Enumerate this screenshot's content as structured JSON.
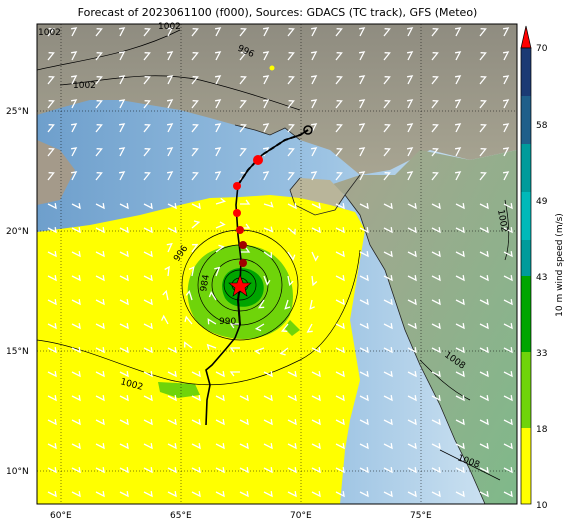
{
  "title": "Forecast of 2023061100 (f000), Sources: GDACS (TC track), GFS (Meteo)",
  "map": {
    "lon_ticks": [
      "60°E",
      "65°E",
      "70°E",
      "75°E"
    ],
    "lat_ticks": [
      "25°N",
      "20°N",
      "15°N",
      "10°N"
    ],
    "extent": {
      "lon": [
        59,
        79
      ],
      "lat": [
        8.8,
        28.5
      ]
    },
    "isobar_labels": [
      "1002",
      "1002",
      "1002",
      "996",
      "996",
      "984",
      "990",
      "1002",
      "1002",
      "1008",
      "1008"
    ],
    "storm_center": {
      "lon": 67.4,
      "lat": 17.8
    }
  },
  "colorbar": {
    "label": "10 m wind speed (m/s)",
    "ticks": [
      "10",
      "18",
      "33",
      "43",
      "49",
      "58",
      "70"
    ],
    "colors": [
      "#ffff00",
      "#6fd40a",
      "#00a500",
      "#009b9b",
      "#1f5f8a",
      "#1b3a74"
    ],
    "extend_color": "#ff0000"
  },
  "legend_colors": {
    "sea": "#8fb6d8",
    "land": "#9a9a8a",
    "track": "#000000",
    "storm_marker": "#ff0000"
  }
}
